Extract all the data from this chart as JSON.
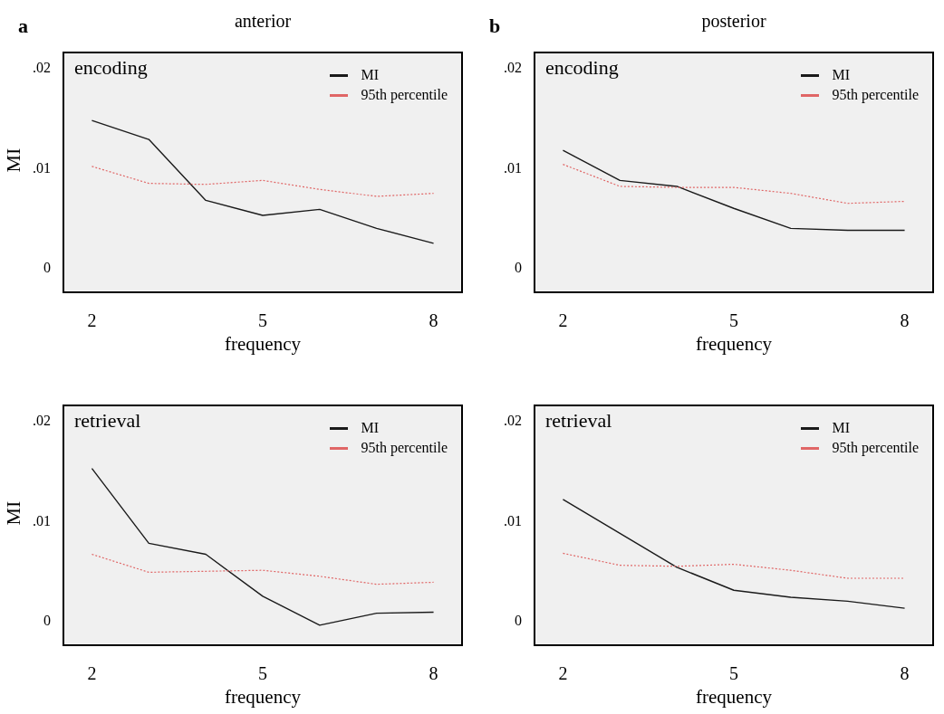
{
  "chart_data": [
    {
      "type": "line",
      "title": "anterior",
      "subtitle": "encoding",
      "annotations": [
        "a"
      ],
      "xlabel": "frequency",
      "ylabel": "MI",
      "x": [
        2,
        3,
        4,
        5,
        6,
        7,
        8
      ],
      "xlim": [
        1.5,
        8.5
      ],
      "xticks": [
        2,
        5,
        8
      ],
      "ylim": [
        -0.0025,
        0.0215
      ],
      "yticks": [
        {
          "value": 0,
          "label": "0"
        },
        {
          "value": 0.01,
          "label": ".01"
        },
        {
          "value": 0.02,
          "label": ".02"
        }
      ],
      "grid": false,
      "legend": "top right",
      "marker": "none",
      "series": [
        {
          "name": "MI",
          "color": "#1a1a1a",
          "line_style": "solid",
          "values": [
            0.0147,
            0.0128,
            0.0067,
            0.0052,
            0.0058,
            0.0039,
            0.0024
          ]
        },
        {
          "name": "95th percentile",
          "color": "#e06666",
          "line_style": "dotted",
          "values": [
            0.0101,
            0.0084,
            0.0083,
            0.0087,
            0.0078,
            0.0071,
            0.0074
          ]
        }
      ]
    },
    {
      "type": "line",
      "title": "posterior",
      "subtitle": "encoding",
      "annotations": [
        "b"
      ],
      "xlabel": "frequency",
      "x": [
        2,
        3,
        4,
        5,
        6,
        7,
        8
      ],
      "xlim": [
        1.5,
        8.5
      ],
      "xticks": [
        2,
        5,
        8
      ],
      "ylim": [
        -0.0025,
        0.0215
      ],
      "yticks": [
        {
          "value": 0,
          "label": "0"
        },
        {
          "value": 0.01,
          "label": ".01"
        },
        {
          "value": 0.02,
          "label": ".02"
        }
      ],
      "grid": false,
      "legend": "top right",
      "marker": "none",
      "series": [
        {
          "name": "MI",
          "color": "#1a1a1a",
          "line_style": "solid",
          "values": [
            0.0117,
            0.0087,
            0.0081,
            0.0059,
            0.0039,
            0.0037,
            0.0037
          ]
        },
        {
          "name": "95th percentile",
          "color": "#e06666",
          "line_style": "dotted",
          "values": [
            0.0103,
            0.0081,
            0.008,
            0.008,
            0.0074,
            0.0064,
            0.0066
          ]
        }
      ]
    },
    {
      "type": "line",
      "subtitle": "retrieval",
      "xlabel": "frequency",
      "ylabel": "MI",
      "x": [
        2,
        3,
        4,
        5,
        6,
        7,
        8
      ],
      "xlim": [
        1.5,
        8.5
      ],
      "xticks": [
        2,
        5,
        8
      ],
      "ylim": [
        -0.0025,
        0.0215
      ],
      "yticks": [
        {
          "value": 0,
          "label": "0"
        },
        {
          "value": 0.01,
          "label": ".01"
        },
        {
          "value": 0.02,
          "label": ".02"
        }
      ],
      "grid": false,
      "legend": "top right",
      "marker": "none",
      "series": [
        {
          "name": "MI",
          "color": "#1a1a1a",
          "line_style": "solid",
          "values": [
            0.0152,
            0.0077,
            0.0066,
            0.0024,
            -0.0005,
            0.0007,
            0.0008
          ]
        },
        {
          "name": "95th percentile",
          "color": "#e06666",
          "line_style": "dotted",
          "values": [
            0.0066,
            0.0048,
            0.0049,
            0.005,
            0.0044,
            0.0036,
            0.0038
          ]
        }
      ]
    },
    {
      "type": "line",
      "subtitle": "retrieval",
      "xlabel": "frequency",
      "x": [
        2,
        3,
        4,
        5,
        6,
        7,
        8
      ],
      "xlim": [
        1.5,
        8.5
      ],
      "xticks": [
        2,
        5,
        8
      ],
      "ylim": [
        -0.0025,
        0.0215
      ],
      "yticks": [
        {
          "value": 0,
          "label": "0"
        },
        {
          "value": 0.01,
          "label": ".01"
        },
        {
          "value": 0.02,
          "label": ".02"
        }
      ],
      "grid": false,
      "legend": "top right",
      "marker": "none",
      "series": [
        {
          "name": "MI",
          "color": "#1a1a1a",
          "line_style": "solid",
          "values": [
            0.0121,
            0.0087,
            0.0053,
            0.003,
            0.0023,
            0.0019,
            0.0012
          ]
        },
        {
          "name": "95th percentile",
          "color": "#e06666",
          "line_style": "dotted",
          "values": [
            0.0067,
            0.0055,
            0.0054,
            0.0056,
            0.005,
            0.0042,
            0.0042
          ]
        }
      ]
    }
  ]
}
